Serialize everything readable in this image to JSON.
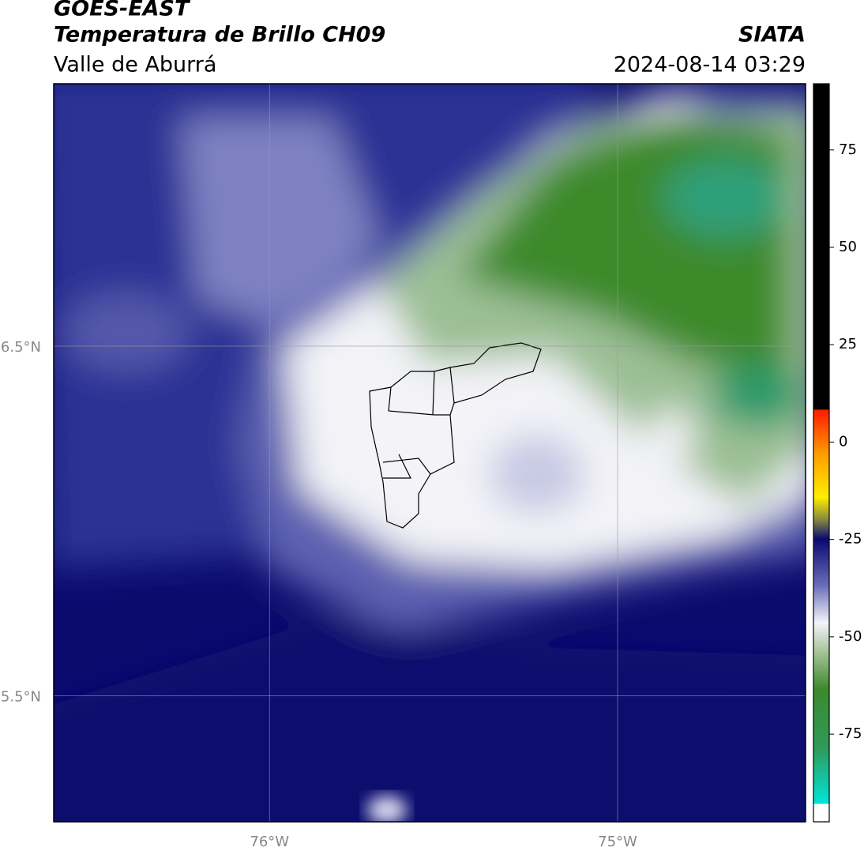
{
  "header": {
    "title": "GOES-EAST",
    "subtitle": "Temperatura de Brillo CH09",
    "region": "Valle de Aburrá",
    "source": "SIATA",
    "datetime": "2024-08-14 03:29"
  },
  "map": {
    "xlim": [
      -76.62,
      -74.46
    ],
    "ylim": [
      5.14,
      7.25
    ],
    "xticks": [
      {
        "value": -76,
        "label": "76°W"
      },
      {
        "value": -75,
        "label": "75°W"
      }
    ],
    "yticks": [
      {
        "value": 6.5,
        "label": "6.5°N"
      },
      {
        "value": 5.5,
        "label": "5.5°N"
      }
    ]
  },
  "colorbar": {
    "lim": [
      -97.5,
      92
    ],
    "ticks": [
      75,
      50,
      25,
      0,
      -25,
      -50,
      -75
    ]
  }
}
